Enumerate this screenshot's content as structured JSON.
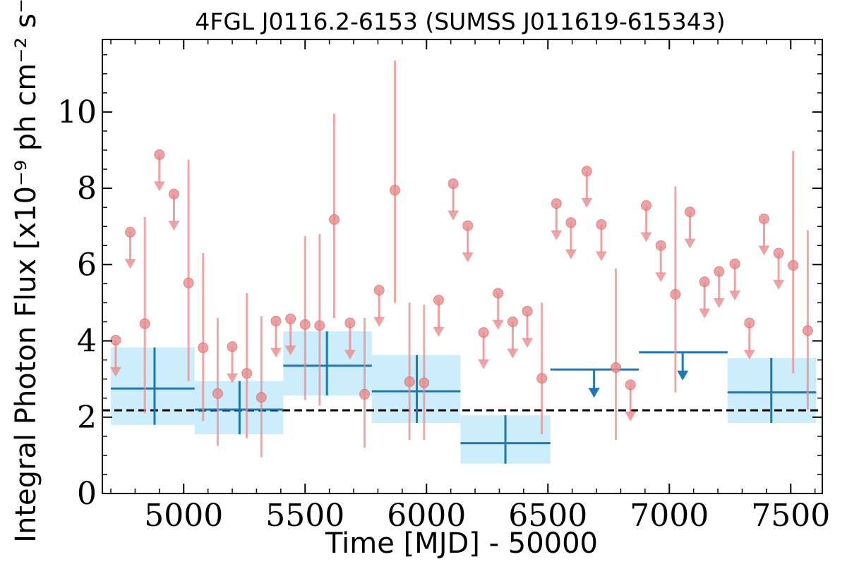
{
  "chart_data": {
    "type": "scatter",
    "title": "4FGL J0116.2-6153 (SUMSS J011619-615343)",
    "xlabel": "Time [MJD] - 50000",
    "ylabel": "Integral Photon Flux [x10⁻⁹ ph cm⁻² s⁻¹]",
    "xlim": [
      4665,
      7630
    ],
    "ylim": [
      0,
      11.9
    ],
    "x_ticks": [
      "5000",
      "5500",
      "6000",
      "6500",
      "7000",
      "7500"
    ],
    "y_ticks": [
      "0",
      "2",
      "4",
      "6",
      "8",
      "10"
    ],
    "x_tick_values": [
      5000,
      5500,
      6000,
      6500,
      7000,
      7500
    ],
    "y_tick_values": [
      0,
      2,
      4,
      6,
      8,
      10
    ],
    "mean_line": {
      "y": 2.18,
      "style": "dashed"
    },
    "colors": {
      "short_bins": "#e88c8c",
      "long_bins": "#1f77b4",
      "band": "#cceefc",
      "mean": "#000000"
    },
    "long_bins": [
      {
        "x": 4880,
        "x_lo": 4700,
        "x_hi": 5045,
        "y": 2.75,
        "y_lo": 1.8,
        "y_hi": 3.83
      },
      {
        "x": 5230,
        "x_lo": 5045,
        "x_hi": 5410,
        "y": 2.2,
        "y_lo": 1.55,
        "y_hi": 2.95
      },
      {
        "x": 5590,
        "x_lo": 5410,
        "x_hi": 5775,
        "y": 3.35,
        "y_lo": 2.57,
        "y_hi": 4.25
      },
      {
        "x": 5960,
        "x_lo": 5775,
        "x_hi": 6140,
        "y": 2.68,
        "y_lo": 1.85,
        "y_hi": 3.63
      },
      {
        "x": 6325,
        "x_lo": 6140,
        "x_hi": 6510,
        "y": 1.32,
        "y_lo": 0.78,
        "y_hi": 2.05
      },
      {
        "x": 6690,
        "x_lo": 6510,
        "x_hi": 6875,
        "y": 3.25,
        "upper_limit": true
      },
      {
        "x": 7055,
        "x_lo": 6875,
        "x_hi": 7240,
        "y": 3.7,
        "upper_limit": true
      },
      {
        "x": 7420,
        "x_lo": 7240,
        "x_hi": 7605,
        "y": 2.65,
        "y_lo": 1.85,
        "y_hi": 3.55
      }
    ],
    "short_bins": [
      {
        "x": 4720,
        "y": 4.02,
        "upper_limit": true
      },
      {
        "x": 4780,
        "y": 6.85,
        "upper_limit": true
      },
      {
        "x": 4840,
        "y": 4.45,
        "y_lo": 2.1,
        "y_hi": 7.25
      },
      {
        "x": 4900,
        "y": 8.88,
        "upper_limit": true
      },
      {
        "x": 4960,
        "y": 7.85,
        "upper_limit": true
      },
      {
        "x": 5020,
        "y": 5.52,
        "y_lo": 2.95,
        "y_hi": 8.75
      },
      {
        "x": 5080,
        "y": 3.82,
        "y_lo": 1.9,
        "y_hi": 6.3
      },
      {
        "x": 5140,
        "y": 2.62,
        "y_lo": 1.25,
        "y_hi": 4.6
      },
      {
        "x": 5200,
        "y": 3.85,
        "upper_limit": true
      },
      {
        "x": 5260,
        "y": 3.15,
        "y_lo": 1.45,
        "y_hi": 5.25
      },
      {
        "x": 5320,
        "y": 2.52,
        "y_lo": 0.95,
        "y_hi": 4.65
      },
      {
        "x": 5380,
        "y": 4.52,
        "upper_limit": true
      },
      {
        "x": 5440,
        "y": 4.58,
        "upper_limit": true
      },
      {
        "x": 5500,
        "y": 4.43,
        "y_lo": 2.45,
        "y_hi": 6.75
      },
      {
        "x": 5560,
        "y": 4.4,
        "y_lo": 2.3,
        "y_hi": 6.8
      },
      {
        "x": 5620,
        "y": 7.18,
        "y_lo": 4.6,
        "y_hi": 9.95
      },
      {
        "x": 5685,
        "y": 4.47,
        "upper_limit": true
      },
      {
        "x": 5745,
        "y": 2.6,
        "y_lo": 1.2,
        "y_hi": 4.6
      },
      {
        "x": 5805,
        "y": 5.33,
        "upper_limit": true
      },
      {
        "x": 5870,
        "y": 7.95,
        "y_lo": 5.0,
        "y_hi": 11.35
      },
      {
        "x": 5930,
        "y": 2.93,
        "y_lo": 1.4,
        "y_hi": 5.0
      },
      {
        "x": 5990,
        "y": 2.9,
        "y_lo": 1.4,
        "y_hi": 4.95
      },
      {
        "x": 6050,
        "y": 5.07,
        "upper_limit": true
      },
      {
        "x": 6110,
        "y": 8.12,
        "upper_limit": true
      },
      {
        "x": 6170,
        "y": 7.02,
        "upper_limit": true
      },
      {
        "x": 6235,
        "y": 4.22,
        "upper_limit": true
      },
      {
        "x": 6295,
        "y": 5.25,
        "upper_limit": true
      },
      {
        "x": 6355,
        "y": 4.5,
        "upper_limit": true
      },
      {
        "x": 6415,
        "y": 4.78,
        "upper_limit": true
      },
      {
        "x": 6475,
        "y": 3.02,
        "y_lo": 1.55,
        "y_hi": 5.0
      },
      {
        "x": 6535,
        "y": 7.6,
        "upper_limit": true
      },
      {
        "x": 6595,
        "y": 7.1,
        "upper_limit": true
      },
      {
        "x": 6660,
        "y": 8.45,
        "upper_limit": true
      },
      {
        "x": 6720,
        "y": 7.05,
        "upper_limit": true
      },
      {
        "x": 6780,
        "y": 3.3,
        "y_lo": 1.4,
        "y_hi": 5.9
      },
      {
        "x": 6840,
        "y": 2.85,
        "upper_limit": true
      },
      {
        "x": 6905,
        "y": 7.55,
        "upper_limit": true
      },
      {
        "x": 6965,
        "y": 6.5,
        "upper_limit": true
      },
      {
        "x": 7025,
        "y": 5.22,
        "y_lo": 2.65,
        "y_hi": 8.05
      },
      {
        "x": 7085,
        "y": 7.38,
        "upper_limit": true
      },
      {
        "x": 7145,
        "y": 5.55,
        "upper_limit": true
      },
      {
        "x": 7205,
        "y": 5.82,
        "upper_limit": true
      },
      {
        "x": 7270,
        "y": 6.02,
        "upper_limit": true
      },
      {
        "x": 7330,
        "y": 4.47,
        "upper_limit": true
      },
      {
        "x": 7390,
        "y": 7.2,
        "upper_limit": true
      },
      {
        "x": 7450,
        "y": 6.3,
        "upper_limit": true
      },
      {
        "x": 7510,
        "y": 5.98,
        "y_lo": 3.15,
        "y_hi": 8.98
      },
      {
        "x": 7570,
        "y": 4.27,
        "y_lo": 2.2,
        "y_hi": 6.9
      }
    ]
  }
}
